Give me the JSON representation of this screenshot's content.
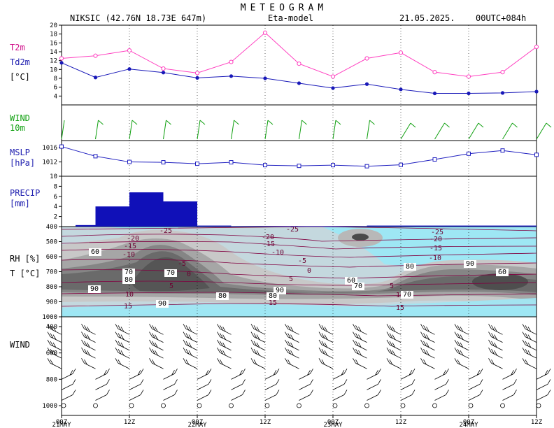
{
  "header": {
    "title": "METEOGRAM",
    "station": "NIKSIC (42.76N 18.73E  647m)",
    "model": "Eta-model",
    "date": "21.05.2025.",
    "run": "00UTC+084h"
  },
  "panels": {
    "temp": {
      "labels": [
        "T2m",
        "Td2m",
        "[°C]"
      ],
      "ticks": [
        "4",
        "6",
        "8",
        "10",
        "12",
        "14",
        "16",
        "18",
        "20"
      ]
    },
    "wind10": {
      "labels": [
        "WIND",
        "10m"
      ]
    },
    "mslp": {
      "labels": [
        "MSLP",
        "[hPa]"
      ],
      "ticks": [
        "1012",
        "1016"
      ]
    },
    "precip": {
      "labels": [
        "PRECIP",
        "[mm]"
      ],
      "ticks": [
        "2",
        "4",
        "6",
        "8",
        "10"
      ]
    },
    "rh": {
      "labels": [
        "RH [%]",
        "T [°C]"
      ],
      "ticks": [
        "400",
        "500",
        "600",
        "700",
        "800",
        "900",
        "1000"
      ]
    },
    "wind": {
      "labels": [
        "WIND"
      ],
      "ticks": [
        "400",
        "600",
        "800",
        "1000"
      ]
    }
  },
  "colors": {
    "t2m": "#ff40c0",
    "td2m": "#1818b8",
    "mslp": "#2020c0",
    "precip": "#1010b8",
    "wind10": "#10a010",
    "temp_contour": "#800040",
    "t2m_label": "#d0108a",
    "td2m_label": "#2020b0"
  },
  "xaxis": {
    "ticks": [
      "00Z",
      "12Z",
      "00Z",
      "12Z",
      "00Z",
      "12Z",
      "00Z",
      "12Z"
    ],
    "dates": [
      "21MAY",
      "22MAY",
      "23MAY",
      "24MAY"
    ]
  },
  "rh_contour_labels": [
    "60",
    "70",
    "80",
    "90",
    "70",
    "80",
    "90",
    "60",
    "70",
    "80",
    "90",
    "60",
    "70",
    "80",
    "90"
  ],
  "temp_contour_labels": [
    "-25",
    "-20",
    "-15",
    "-10",
    "-5",
    "0",
    "5",
    "10",
    "15"
  ],
  "chart_data": {
    "type": "line",
    "x": [
      "21MAY 00Z",
      "21MAY 06Z",
      "21MAY 12Z",
      "21MAY 18Z",
      "22MAY 00Z",
      "22MAY 06Z",
      "22MAY 12Z",
      "22MAY 18Z",
      "23MAY 00Z",
      "23MAY 06Z",
      "23MAY 12Z",
      "23MAY 18Z",
      "24MAY 00Z",
      "24MAY 06Z",
      "24MAY 12Z"
    ],
    "series": [
      {
        "name": "T2m",
        "values": [
          12.5,
          13.1,
          14.3,
          10.2,
          9.2,
          11.7,
          18.3,
          11.3,
          8.4,
          12.5,
          13.8,
          9.4,
          8.4,
          9.4,
          15.1
        ]
      },
      {
        "name": "Td2m",
        "values": [
          11.5,
          8.2,
          10.1,
          9.3,
          8.1,
          8.5,
          8.0,
          6.9,
          5.8,
          6.7,
          5.5,
          4.6,
          4.6,
          4.7,
          5.0
        ]
      },
      {
        "name": "MSLP",
        "values": [
          1016.3,
          1013.6,
          1012.0,
          1011.9,
          1011.5,
          1011.9,
          1011.1,
          1010.9,
          1011.1,
          1010.8,
          1011.2,
          1012.7,
          1014.3,
          1015.2,
          1014.0
        ]
      },
      {
        "name": "PRECIP",
        "values": [
          0.0,
          0.3,
          4.0,
          6.8,
          5.0,
          0.2,
          0.1,
          0.1,
          0.1,
          0.1,
          0.2,
          0.2,
          0.2,
          0.2,
          0.2
        ]
      }
    ],
    "wind10m_kt": [
      0,
      10,
      10,
      10,
      10,
      5,
      5,
      5,
      5,
      5,
      5,
      5,
      5,
      5,
      5
    ],
    "xlabel": "",
    "ylabel": ""
  }
}
